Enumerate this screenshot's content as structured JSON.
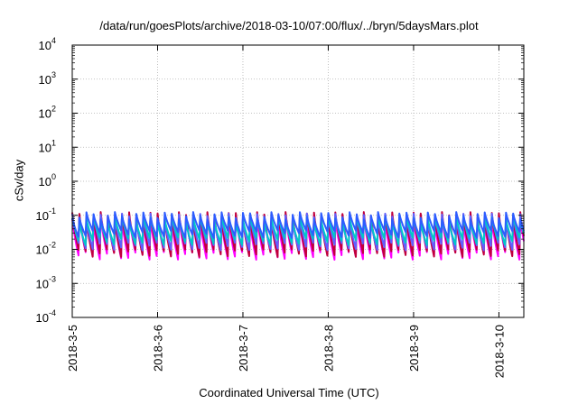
{
  "chart_data": {
    "type": "line",
    "title": "/data/run/goesPlots/archive/2018-03-10/07:00/flux/../bryn/5daysMars.plot",
    "xlabel": "Coordinated Universal Time (UTC)",
    "ylabel": "cSv/day",
    "yscale": "log",
    "ylim_exp": [
      -4,
      4
    ],
    "y_tick_base": "10",
    "y_tick_exponents": [
      "-4",
      "-3",
      "-2",
      "-1",
      "0",
      "1",
      "2",
      "3",
      "4"
    ],
    "xlim": [
      "2018-03-05T00:00",
      "2018-03-10T07:00"
    ],
    "x_tick_labels": [
      "2018-3-5",
      "2018-3-6",
      "2018-3-7",
      "2018-3-8",
      "2018-3-9",
      "2018-3-10"
    ],
    "grid": true,
    "legend": "none",
    "sawtooth_period_hours": 2,
    "series": [
      {
        "color": "#ff00ff",
        "peak": 0.08,
        "trough": 0.005
      },
      {
        "color": "#c0003c",
        "peak": 0.1,
        "trough": 0.006
      },
      {
        "color": "#6060ff",
        "peak": 0.09,
        "trough": 0.01
      },
      {
        "color": "#00c8c8",
        "peak": 0.08,
        "trough": 0.015
      },
      {
        "color": "#2d5cff",
        "peak": 0.1,
        "trough": 0.025
      }
    ]
  }
}
